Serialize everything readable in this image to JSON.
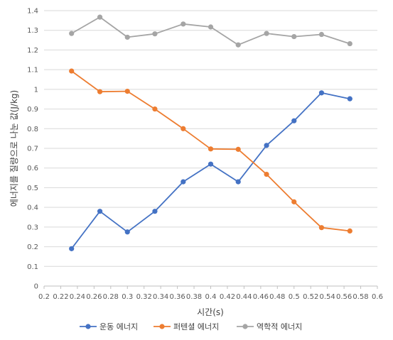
{
  "chart_data": {
    "type": "line",
    "title": "",
    "xlabel": "시간(s)",
    "ylabel": "에너지를 질량으로 나눈 값(J/kg)",
    "xlim": [
      0.2,
      0.6
    ],
    "ylim": [
      0,
      1.4
    ],
    "x_ticks": [
      "0.2",
      "0.22",
      "0.24",
      "0.26",
      "0.28",
      "0.3",
      "0.32",
      "0.34",
      "0.36",
      "0.38",
      "0.4",
      "0.42",
      "0.44",
      "0.46",
      "0.48",
      "0.5",
      "0.52",
      "0.54",
      "0.56",
      "0.58",
      "0.6"
    ],
    "y_ticks": [
      "0",
      "0.1",
      "0.2",
      "0.3",
      "0.4",
      "0.5",
      "0.6",
      "0.7",
      "0.8",
      "0.9",
      "1",
      "1.1",
      "1.2",
      "1.3",
      "1.4"
    ],
    "grid": true,
    "legend_position": "bottom",
    "x": [
      0.233,
      0.267,
      0.3,
      0.333,
      0.367,
      0.4,
      0.433,
      0.467,
      0.5,
      0.533,
      0.567
    ],
    "series": [
      {
        "name": "운동 에너지",
        "color": "#4472C4",
        "values": [
          0.19,
          0.38,
          0.275,
          0.38,
          0.53,
          0.62,
          0.53,
          0.715,
          0.84,
          0.982,
          0.952
        ]
      },
      {
        "name": "퍼텐셜 에너지",
        "color": "#ED7D31",
        "values": [
          1.093,
          0.988,
          0.99,
          0.9,
          0.8,
          0.697,
          0.695,
          0.568,
          0.428,
          0.297,
          0.28
        ]
      },
      {
        "name": "역학적 에너지",
        "color": "#A5A5A5",
        "values": [
          1.284,
          1.367,
          1.265,
          1.282,
          1.332,
          1.317,
          1.226,
          1.284,
          1.268,
          1.279,
          1.232
        ]
      }
    ]
  }
}
